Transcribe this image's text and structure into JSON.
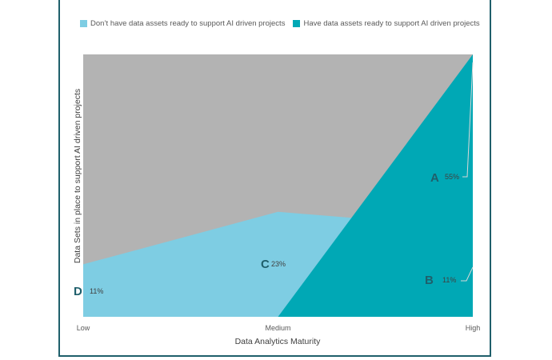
{
  "chart_data": {
    "type": "area",
    "categories": [
      "Low",
      "Medium",
      "High"
    ],
    "series": [
      {
        "name": "Don’t have data assets ready to support AI driven projects",
        "color": "#7ecde3",
        "values": [
          20,
          40,
          34
        ]
      },
      {
        "name": "Have data assets ready to support AI driven projects",
        "color": "#00a8b5",
        "values": [
          0,
          0,
          100
        ]
      }
    ],
    "background_color": "#b3b3b3",
    "ylim": [
      0,
      100
    ],
    "xlabel": "Data Analytics Maturity",
    "ylabel": "Data Sets in place to support AI driven projects",
    "legend_position": "top",
    "grid": false,
    "annotations": [
      {
        "letter": "A",
        "value": "55%",
        "color": "#1f5f6b"
      },
      {
        "letter": "B",
        "value": "11%",
        "color": "#1f5f6b"
      },
      {
        "letter": "C",
        "value": "23%",
        "color": "#1f5f6b"
      },
      {
        "letter": "D",
        "value": "11%",
        "color": "#1f5f6b"
      }
    ]
  }
}
